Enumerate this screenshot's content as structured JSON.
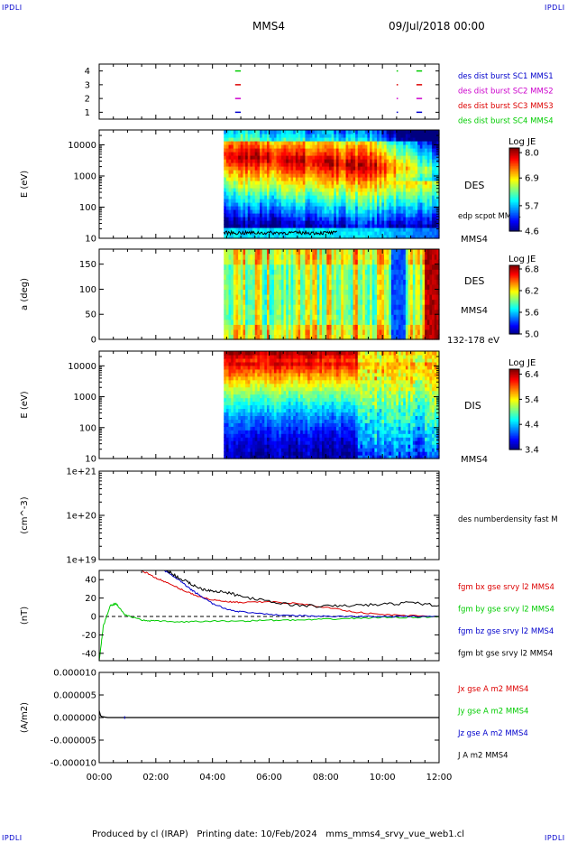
{
  "header": {
    "corner_tl": "IPDLI",
    "corner_tr": "IPDLI",
    "corner_bl": "IPDLI",
    "corner_br": "IPDLI",
    "spacecraft": "MMS4",
    "date": "09/Jul/2018 00:00"
  },
  "footer": {
    "credit": "Produced by cl (IRAP)   Printing date: 10/Feb/2024   mms_mms4_srvy_vue_web1.cl"
  },
  "colors": {
    "blue": "#0000cc",
    "magenta": "#cc00cc",
    "red": "#dd0000",
    "green": "#00cc00",
    "black": "#000000"
  },
  "chart_data": [
    {
      "id": "burst",
      "type": "scatter",
      "ylabel": "",
      "yticks": [
        "1",
        "2",
        "3",
        "4"
      ],
      "ylim": [
        0.5,
        4.5
      ],
      "legend": [
        {
          "label": "des dist burst SC1 MMS1",
          "color": "#0000cc"
        },
        {
          "label": "des dist burst SC2 MMS2",
          "color": "#cc00cc"
        },
        {
          "label": "des dist burst SC3 MMS3",
          "color": "#dd0000"
        },
        {
          "label": "des dist burst SC4 MMS4",
          "color": "#00cc00"
        }
      ],
      "series": [
        {
          "sc": 1,
          "color": "#0000cc",
          "segments": [
            [
              4.8,
              5.0
            ],
            [
              10.5,
              10.55
            ],
            [
              11.2,
              11.4
            ]
          ]
        },
        {
          "sc": 2,
          "color": "#cc00cc",
          "segments": [
            [
              4.8,
              5.0
            ],
            [
              10.5,
              10.55
            ],
            [
              11.2,
              11.4
            ]
          ]
        },
        {
          "sc": 3,
          "color": "#dd0000",
          "segments": [
            [
              4.8,
              5.0
            ],
            [
              10.5,
              10.55
            ],
            [
              11.2,
              11.4
            ]
          ]
        },
        {
          "sc": 4,
          "color": "#00cc00",
          "segments": [
            [
              4.8,
              5.0
            ],
            [
              10.5,
              10.55
            ],
            [
              11.2,
              11.4
            ]
          ]
        }
      ]
    },
    {
      "id": "des_energy",
      "type": "heatmap",
      "ylabel": "E (eV)",
      "yscale": "log",
      "yticks": [
        "10",
        "100",
        "1000",
        "10000"
      ],
      "ylim": [
        10,
        30000
      ],
      "data_start_hours": 4.4,
      "label": "DES",
      "sublabel": "edp scpot MMS4",
      "spacecraft": "MMS4",
      "colorbar": {
        "title": "Log JE",
        "min": 4.6,
        "max": 8.2,
        "ticks": [
          "8.0",
          "6.9",
          "5.7",
          "4.6"
        ]
      },
      "overlay": {
        "name": "edp scpot MMS4",
        "values_ev": [
          14,
          16,
          15,
          14,
          16,
          15,
          15,
          14
        ],
        "x_hours": [
          4.4,
          5.0,
          5.6,
          6.2,
          6.8,
          7.4,
          8.0,
          8.4
        ]
      }
    },
    {
      "id": "des_pitch",
      "type": "heatmap",
      "ylabel": "a (deg)",
      "yticks": [
        "0",
        "50",
        "100",
        "150"
      ],
      "ylim": [
        0,
        180
      ],
      "data_start_hours": 4.4,
      "label": "DES",
      "sublabel": "132-178 eV",
      "spacecraft": "MMS4",
      "colorbar": {
        "title": "Log JE",
        "min": 5.0,
        "max": 6.9,
        "ticks": [
          "6.8",
          "6.2",
          "5.6",
          "5.0"
        ]
      }
    },
    {
      "id": "dis_energy",
      "type": "heatmap",
      "ylabel": "E (eV)",
      "yscale": "log",
      "yticks": [
        "10",
        "100",
        "1000",
        "10000"
      ],
      "ylim": [
        10,
        30000
      ],
      "data_start_hours": 4.4,
      "label": "DIS",
      "spacecraft": "MMS4",
      "colorbar": {
        "title": "Log JE",
        "min": 3.4,
        "max": 6.6,
        "ticks": [
          "6.4",
          "5.4",
          "4.4",
          "3.4"
        ]
      }
    },
    {
      "id": "density",
      "type": "line",
      "ylabel": "(cm^-3)",
      "yscale": "log",
      "yticks": [
        "1e+19",
        "1e+20",
        "1e+21"
      ],
      "ylim": [
        1e+19,
        1e+21
      ],
      "legend": [
        {
          "label": "des numberdensity fast M",
          "color": "#000000"
        }
      ],
      "series": []
    },
    {
      "id": "fgm",
      "type": "line",
      "ylabel": "(nT)",
      "yticks": [
        "-40",
        "-20",
        "0",
        "20",
        "40"
      ],
      "ylim": [
        -48,
        50
      ],
      "legend": [
        {
          "label": "fgm bx gse srvy l2 MMS4",
          "color": "#dd0000"
        },
        {
          "label": "fgm by gse srvy l2 MMS4",
          "color": "#00cc00"
        },
        {
          "label": "fgm bz gse srvy l2 MMS4",
          "color": "#0000cc"
        },
        {
          "label": "fgm bt gse srvy l2 MMS4",
          "color": "#000000"
        }
      ],
      "series": [
        {
          "name": "fgm bx gse srvy l2 MMS4",
          "color": "#dd0000",
          "x": [
            1.5,
            2.0,
            2.5,
            3.0,
            3.5,
            4.0,
            4.5,
            5.0,
            6.0,
            7.0,
            8.0,
            9.0,
            10.0,
            11.0,
            12.0
          ],
          "y": [
            50,
            42,
            35,
            28,
            22,
            18,
            16,
            15,
            16,
            14,
            10,
            5,
            2,
            1,
            0
          ]
        },
        {
          "name": "fgm by gse srvy l2 MMS4",
          "color": "#00cc00",
          "x": [
            0.0,
            0.15,
            0.4,
            0.6,
            0.9,
            1.5,
            2.0,
            3.0,
            4.0,
            5.0,
            6.0,
            7.0,
            8.0,
            9.0,
            10.0,
            11.0,
            12.0
          ],
          "y": [
            -48,
            -10,
            12,
            14,
            2,
            -4,
            -5,
            -6,
            -5,
            -5,
            -4,
            -4,
            -3,
            -2,
            -1,
            -1,
            0
          ]
        },
        {
          "name": "fgm bz gse srvy l2 MMS4",
          "color": "#0000cc",
          "x": [
            2.3,
            2.8,
            3.2,
            3.6,
            4.0,
            4.5,
            5.0,
            6.0,
            7.0,
            8.0,
            9.0,
            10.0,
            11.0,
            12.0
          ],
          "y": [
            50,
            40,
            30,
            22,
            14,
            8,
            5,
            2,
            1,
            0,
            0,
            0,
            0,
            0
          ]
        },
        {
          "name": "fgm bt gse srvy l2 MMS4",
          "color": "#000000",
          "x": [
            2.4,
            2.8,
            3.2,
            3.6,
            4.0,
            4.5,
            5.0,
            6.0,
            7.0,
            8.0,
            9.0,
            10.0,
            11.0,
            12.0
          ],
          "y": [
            50,
            42,
            36,
            30,
            28,
            26,
            22,
            16,
            12,
            11,
            12,
            13,
            15,
            12
          ]
        }
      ]
    },
    {
      "id": "current",
      "type": "line",
      "ylabel": "(A/m2)",
      "yticks": [
        "-0.000010",
        "-0.000005",
        "0.000000",
        "0.000005",
        "0.000010"
      ],
      "ylim": [
        -1e-05,
        1e-05
      ],
      "legend": [
        {
          "label": "Jx gse A m2 MMS4",
          "color": "#dd0000"
        },
        {
          "label": "Jy gse A m2 MMS4",
          "color": "#00cc00"
        },
        {
          "label": "Jz gse A m2 MMS4",
          "color": "#0000cc"
        },
        {
          "label": "J A m2 MMS4",
          "color": "#000000"
        }
      ],
      "series": [
        {
          "name": "J A m2 MMS4",
          "color": "#000000",
          "x": [
            0.0,
            0.05,
            0.1,
            0.3,
            1.0,
            4.0,
            8.0,
            12.0
          ],
          "y": [
            1.5e-06,
            4e-07,
            2e-07,
            0.0,
            0.0,
            0.0,
            0.0,
            0.0
          ]
        }
      ]
    }
  ],
  "xaxis": {
    "ticks": [
      "00:00",
      "02:00",
      "04:00",
      "06:00",
      "08:00",
      "10:00",
      "12:00"
    ],
    "xlim_hours": [
      0,
      12
    ]
  }
}
